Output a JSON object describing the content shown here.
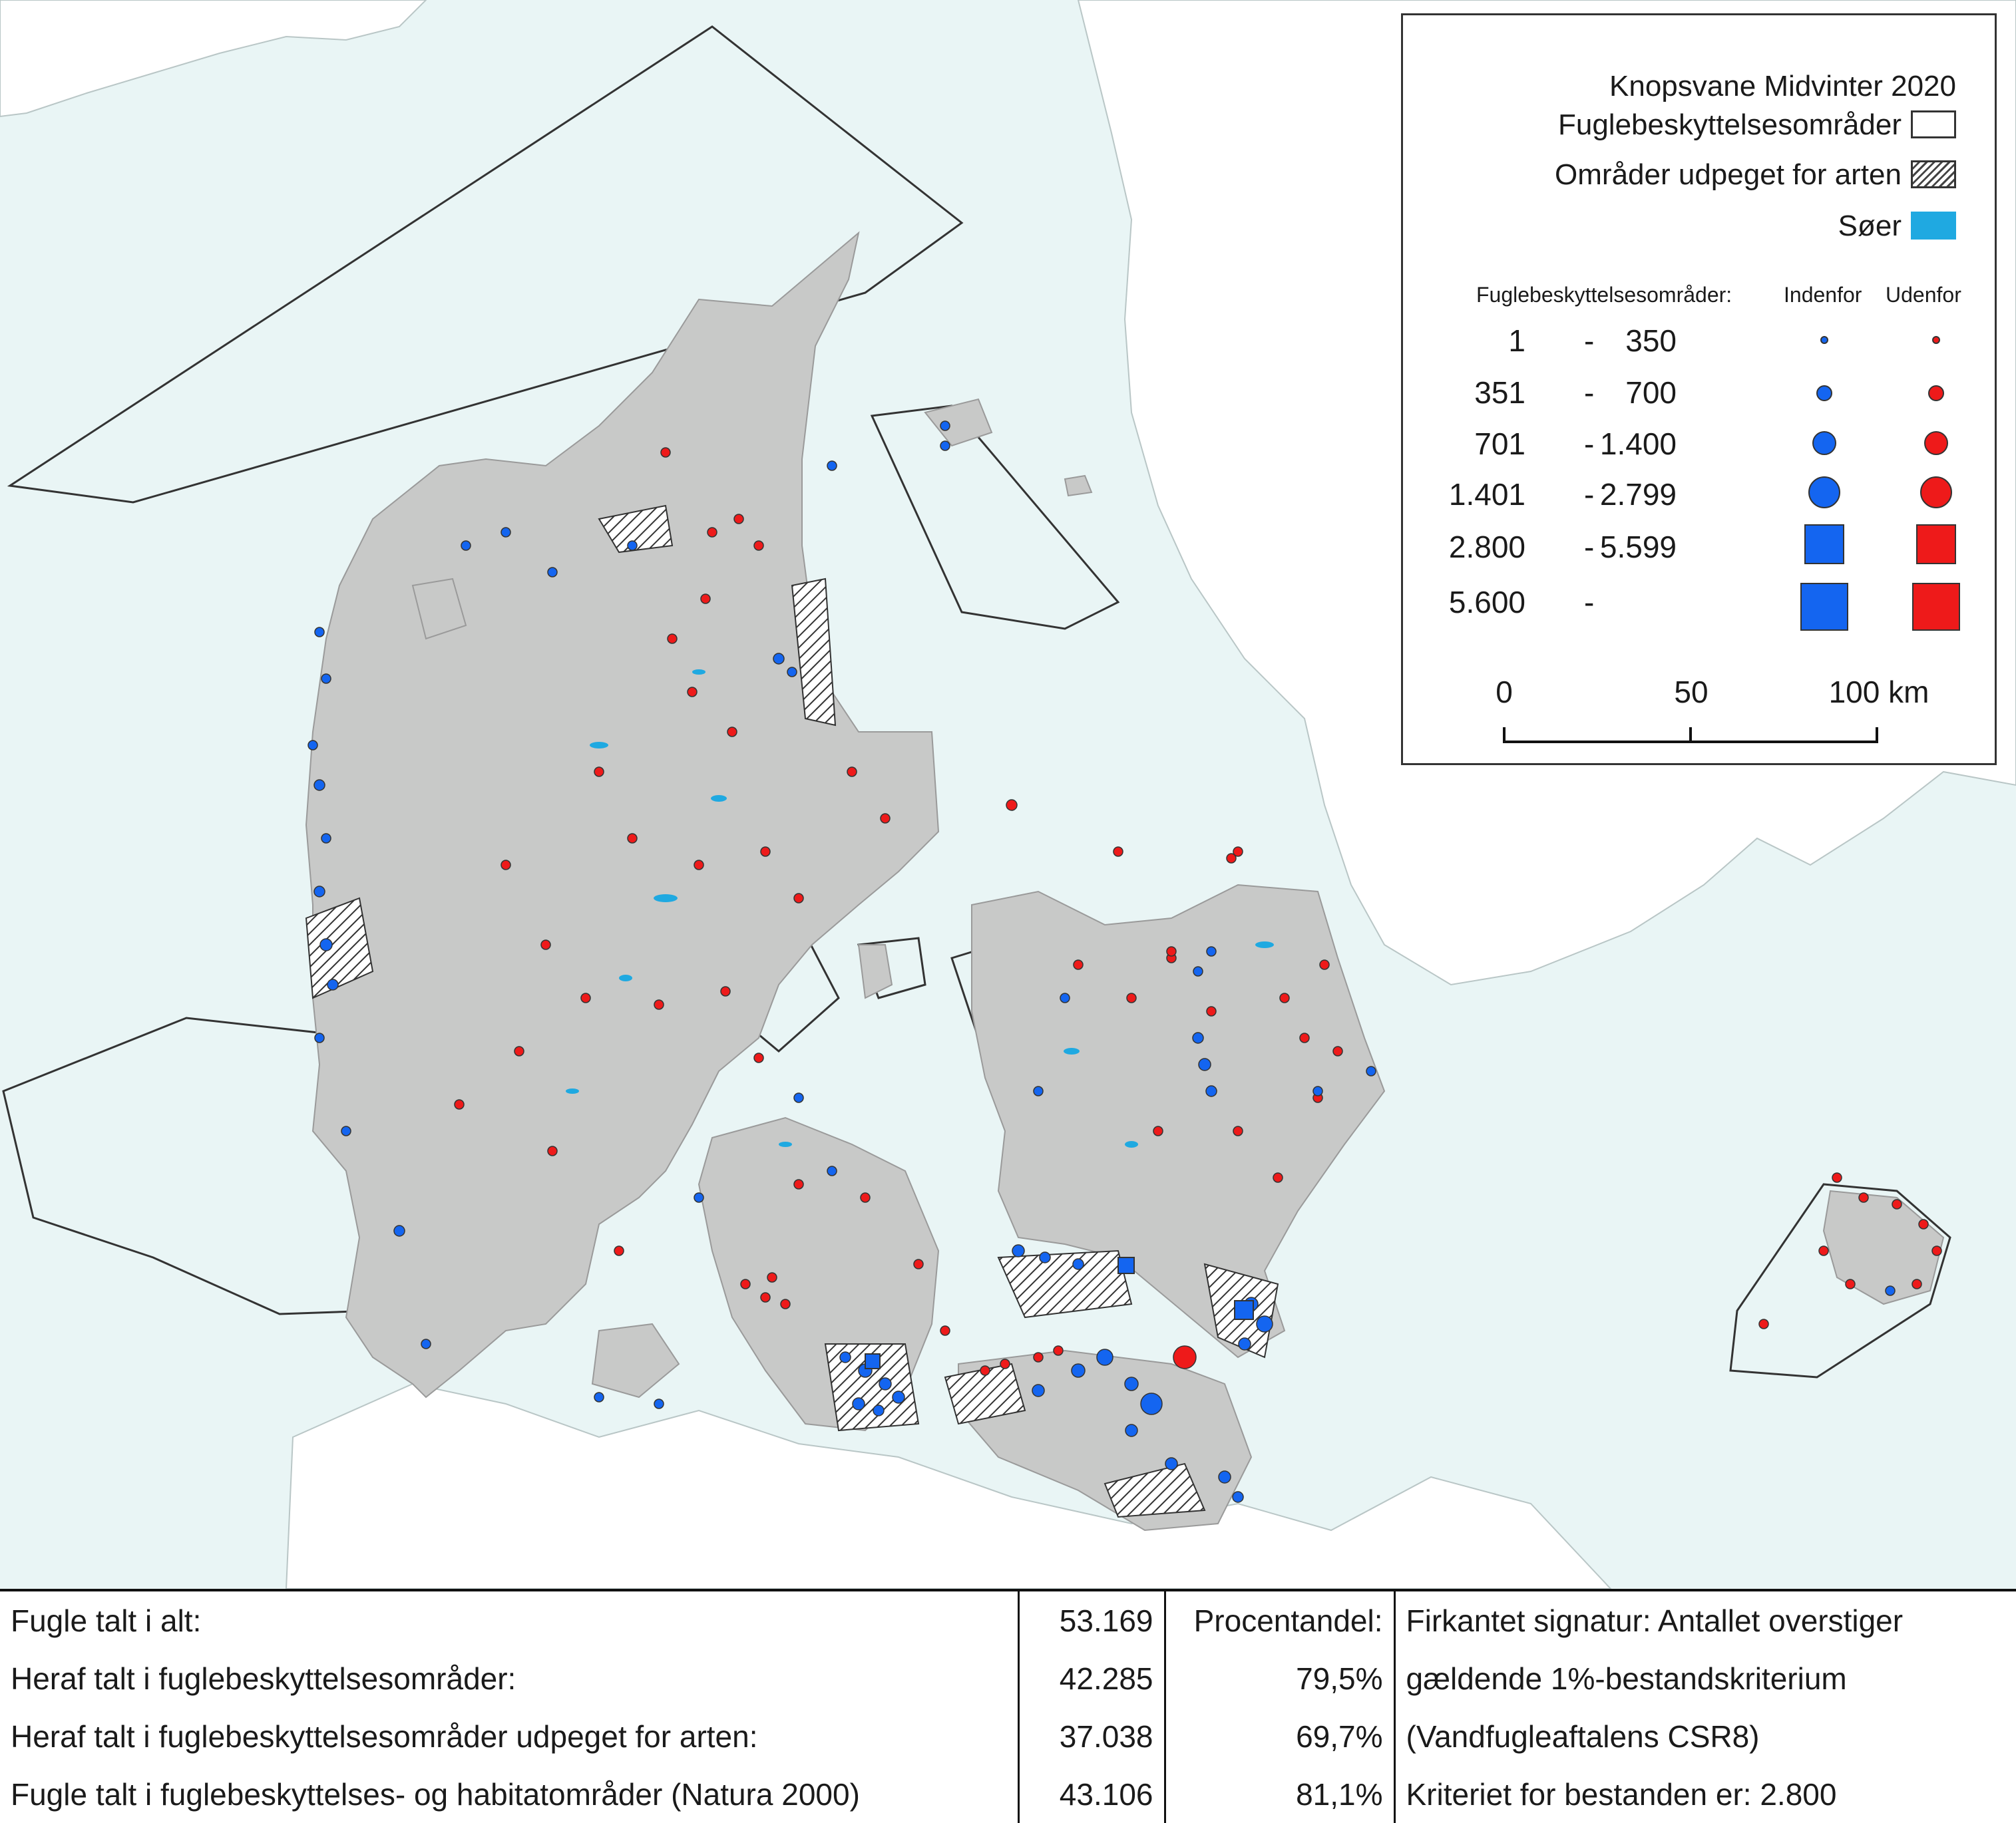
{
  "map": {
    "colors": {
      "sea": "#e9f5f5",
      "neighbour_land": "#ffffff",
      "denmark_land": "#c8c9c8",
      "lakes": "#1fa9e1",
      "inside_spa": "#1465f0",
      "outside_spa": "#ee1a1a"
    },
    "symbol_legend": {
      "inside_color": "inside_spa",
      "outside_color": "outside_spa"
    }
  },
  "legend": {
    "title": "Knopsvane Midvinter 2020",
    "items": [
      {
        "label": "Fuglebeskyttelsesområder",
        "swatch": "white-box"
      },
      {
        "label": "Områder udpeget for arten",
        "swatch": "hatched-box"
      },
      {
        "label": "Søer",
        "swatch": "blue-box"
      }
    ],
    "columns_header": "Fuglebeskyttelsesområder:",
    "col_inside": "Indenfor",
    "col_outside": "Udenfor",
    "classes": [
      {
        "from": "1",
        "dash": "-",
        "to": "350",
        "shape": "circle",
        "size": "xs"
      },
      {
        "from": "351",
        "dash": "-",
        "to": "700",
        "shape": "circle",
        "size": "s"
      },
      {
        "from": "701",
        "dash": "-",
        "to": "1.400",
        "shape": "circle",
        "size": "m"
      },
      {
        "from": "1.401",
        "dash": "-",
        "to": "2.799",
        "shape": "circle",
        "size": "l"
      },
      {
        "from": "2.800",
        "dash": "-",
        "to": "5.599",
        "shape": "square",
        "size": "m"
      },
      {
        "from": "5.600",
        "dash": "-",
        "to": "",
        "shape": "square",
        "size": "l"
      }
    ],
    "scalebar": {
      "labels": [
        "0",
        "50",
        "100 km"
      ]
    }
  },
  "stats": {
    "rows": [
      {
        "label": "Fugle talt i alt:",
        "value": "53.169",
        "pct": "Procentandel:",
        "note": "Firkantet signatur: Antallet overstiger"
      },
      {
        "label": "Heraf talt i fuglebeskyttelsesområder:",
        "value": "42.285",
        "pct": "79,5%",
        "note": "gældende 1%-bestandskriterium"
      },
      {
        "label": "Heraf talt i fuglebeskyttelsesområder udpeget for arten:",
        "value": "37.038",
        "pct": "69,7%",
        "note": "(Vandfugleaftalens CSR8)"
      },
      {
        "label": "Fugle talt i fuglebeskyttelses- og habitatområder (Natura 2000)",
        "value": "43.106",
        "pct": "81,1%",
        "note": "Kriteriet for bestanden er: 2.800"
      }
    ]
  }
}
